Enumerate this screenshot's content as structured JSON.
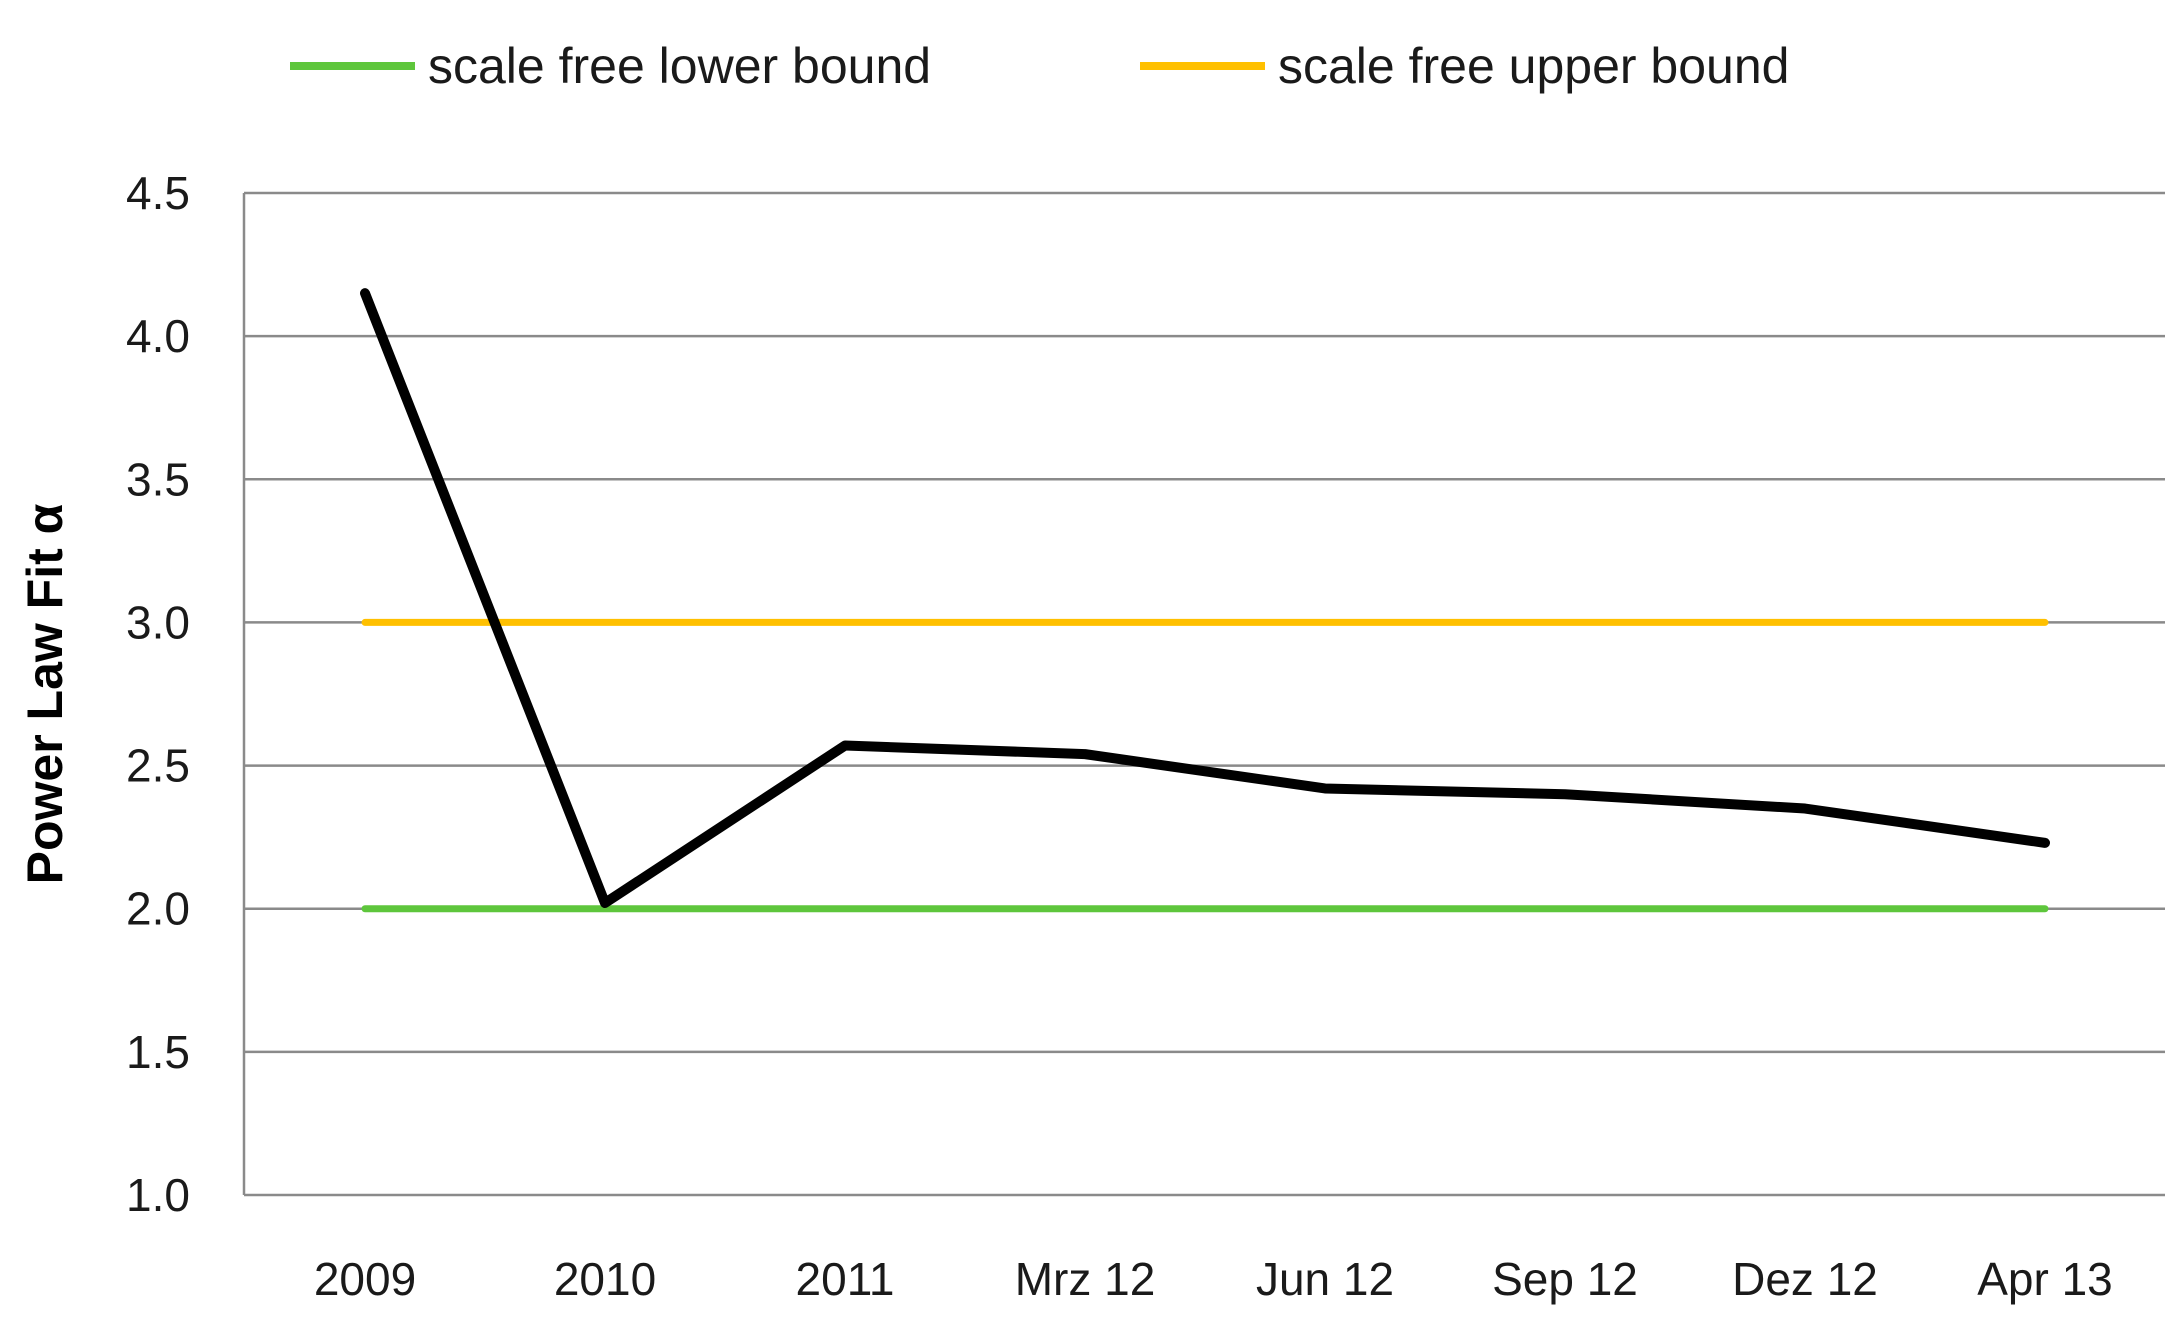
{
  "chart_data": {
    "type": "line",
    "categories": [
      "2009",
      "2010",
      "2011",
      "Mrz 12",
      "Jun 12",
      "Sep 12",
      "Dez 12",
      "Apr 13"
    ],
    "series": [
      {
        "name": "",
        "color": "#000000",
        "values": [
          4.15,
          2.02,
          2.57,
          2.54,
          2.42,
          2.4,
          2.35,
          2.23
        ]
      },
      {
        "name": "scale free lower bound",
        "color": "#5ec63c",
        "values": [
          2.0,
          2.0,
          2.0,
          2.0,
          2.0,
          2.0,
          2.0,
          2.0
        ]
      },
      {
        "name": "scale free upper bound",
        "color": "#ffc000",
        "values": [
          3.0,
          3.0,
          3.0,
          3.0,
          3.0,
          3.0,
          3.0,
          3.0
        ]
      }
    ],
    "ylabel": "Power Law Fit α",
    "xlabel": "",
    "ylim": [
      1.0,
      4.5
    ],
    "yticks": [
      "1.0",
      "1.5",
      "2.0",
      "2.5",
      "3.0",
      "3.5",
      "4.0",
      "4.5"
    ],
    "grid": "horizontal",
    "legend_position": "top"
  }
}
